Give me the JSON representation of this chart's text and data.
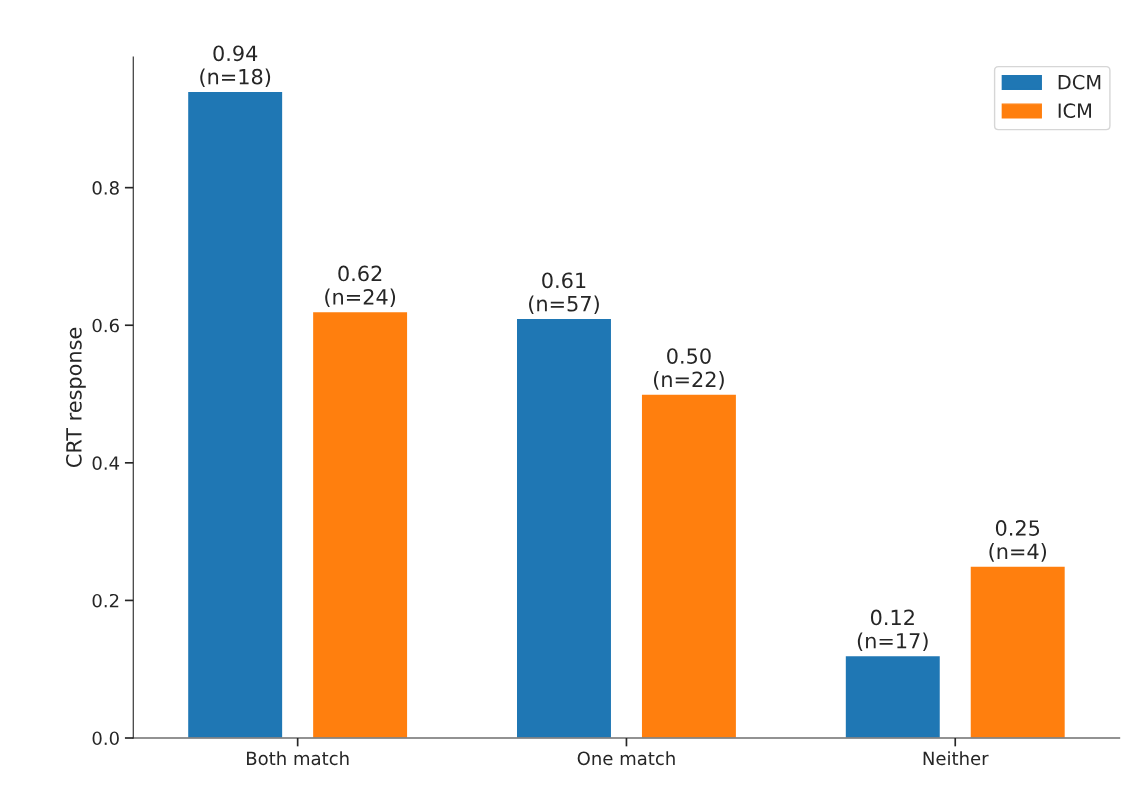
{
  "chart_data": {
    "type": "bar",
    "ylabel": "CRT response",
    "categories": [
      "Both match",
      "One match",
      "Neither"
    ],
    "series": [
      {
        "name": "DCM",
        "color": "#1f77b4",
        "values": [
          0.94,
          0.61,
          0.12
        ],
        "value_labels": [
          "0.94\n(n=18)",
          "0.61\n(n=57)",
          "0.12\n(n=17)"
        ]
      },
      {
        "name": "ICM",
        "color": "#ff7f0e",
        "values": [
          0.62,
          0.5,
          0.25
        ],
        "value_labels": [
          "0.62\n(n=24)",
          "0.50\n(n=22)",
          "0.25\n(n=4)"
        ]
      }
    ],
    "ylim": [
      0,
      0.99
    ],
    "yticks": [
      {
        "value": 0,
        "label": "0.0"
      },
      0.2,
      0.4,
      0.6,
      0.8
    ],
    "grid": false,
    "legend": "top right"
  }
}
